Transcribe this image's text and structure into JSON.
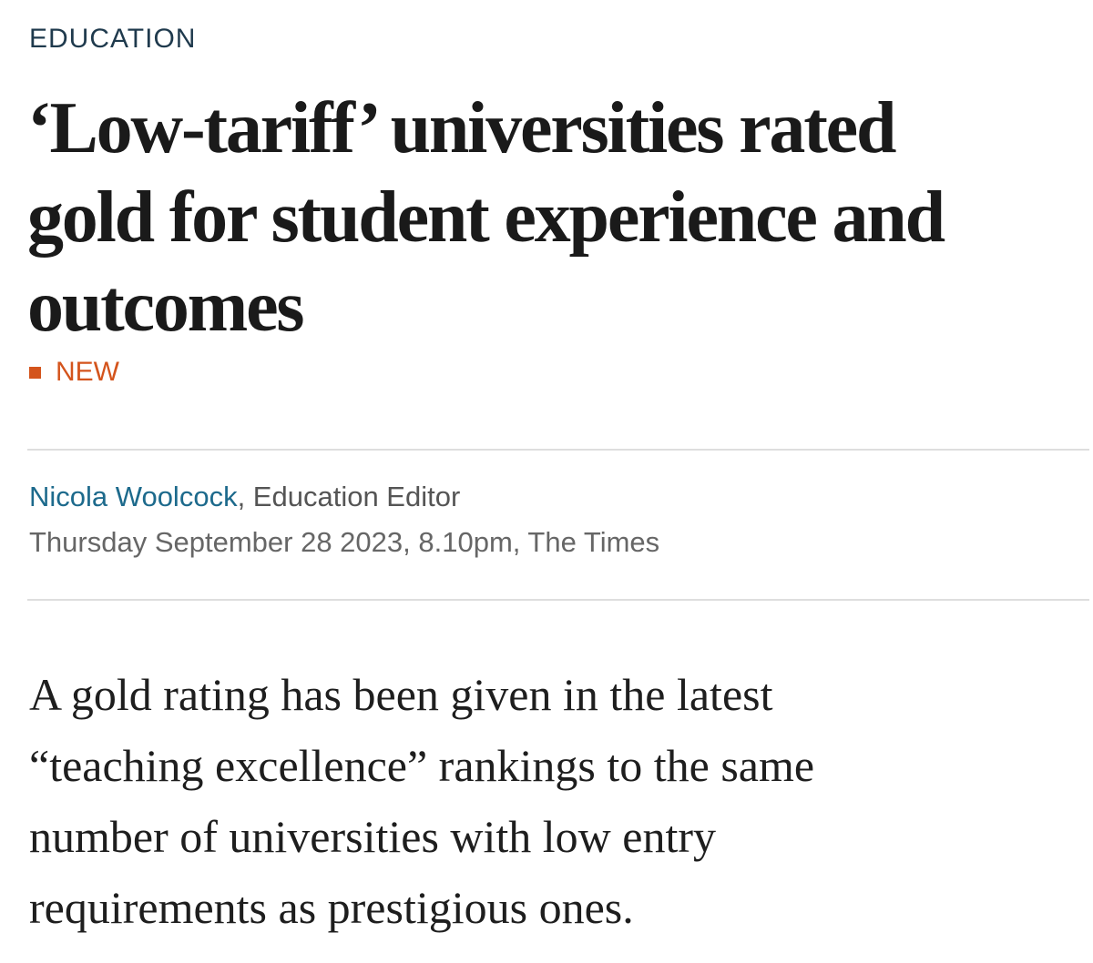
{
  "section": "EDUCATION",
  "headline": [
    "‘Low-tariff’ universities rated",
    "gold for student experience and",
    "outcomes"
  ],
  "tag": "NEW",
  "byline": {
    "author": "Nicola Woolcock",
    "role": ", Education Editor"
  },
  "dateline": "Thursday September 28 2023, 8.10pm, The Times",
  "standfirst": [
    "A gold rating has been given in the latest",
    "“teaching excellence” rankings to the same",
    "number of universities with low entry",
    "requirements as prestigious ones."
  ]
}
